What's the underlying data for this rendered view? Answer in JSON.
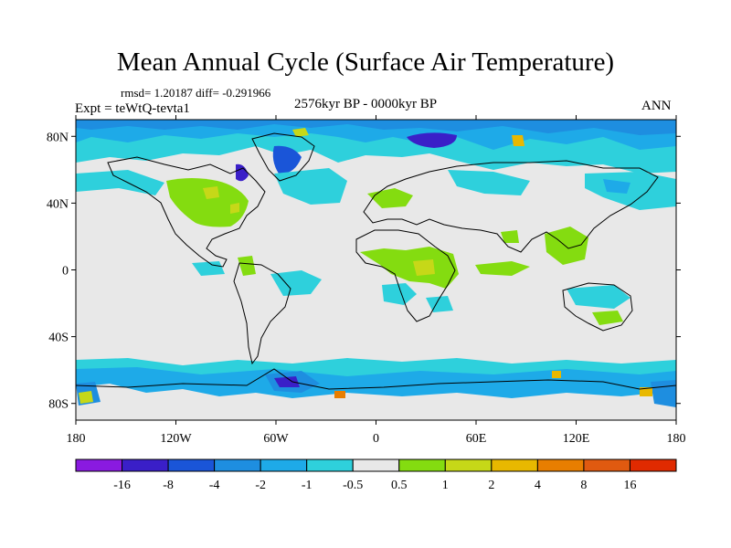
{
  "header": {
    "title": "Mean Annual Cycle (Surface Air Temperature)",
    "stats": "rmsd= 1.20187 diff= -0.291966",
    "period": "2576kyr BP - 0000kyr BP",
    "experiment": "Expt = teWtQ-tevta1",
    "season": "ANN"
  },
  "map": {
    "background_color": "#e8e8e8",
    "coastline_color": "#000000",
    "lat_ticks": [
      {
        "value": 80,
        "label": "80N"
      },
      {
        "value": 40,
        "label": "40N"
      },
      {
        "value": 0,
        "label": "0"
      },
      {
        "value": -40,
        "label": "40S"
      },
      {
        "value": -80,
        "label": "80S"
      }
    ],
    "lon_ticks": [
      {
        "value": -180,
        "label": "180"
      },
      {
        "value": -120,
        "label": "120W"
      },
      {
        "value": -60,
        "label": "60W"
      },
      {
        "value": 0,
        "label": "0"
      },
      {
        "value": 60,
        "label": "60E"
      },
      {
        "value": 120,
        "label": "120E"
      },
      {
        "value": 180,
        "label": "180"
      }
    ]
  },
  "colorbar": {
    "colors": [
      "#8a1ae0",
      "#3a1fc8",
      "#1a55d8",
      "#1e8ee0",
      "#1eaae8",
      "#2ed0dc",
      "#e8e8e8",
      "#84dc10",
      "#c6d818",
      "#e8b800",
      "#e87e00",
      "#e05a10",
      "#e02a00"
    ],
    "labels": [
      "-16",
      "-8",
      "-4",
      "-2",
      "-1",
      "-0.5",
      "0.5",
      "1",
      "2",
      "4",
      "8",
      "16"
    ]
  }
}
